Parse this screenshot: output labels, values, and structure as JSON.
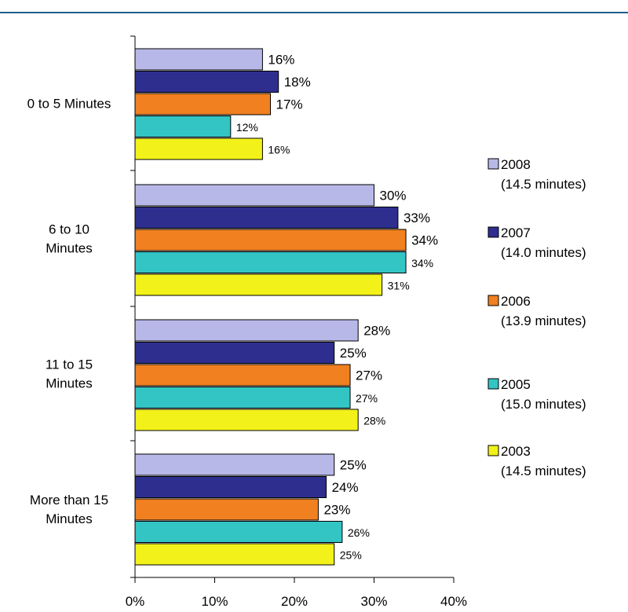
{
  "chart_data": {
    "type": "bar",
    "orientation": "horizontal",
    "categories": [
      "0 to 5 Minutes",
      "6 to 10 Minutes",
      "11 to 15 Minutes",
      "More than 15 Minutes"
    ],
    "category_lines": [
      [
        "0 to 5 Minutes"
      ],
      [
        "6 to 10",
        "Minutes"
      ],
      [
        "11 to 15",
        "Minutes"
      ],
      [
        "More than 15",
        "Minutes"
      ]
    ],
    "series": [
      {
        "name": "2008",
        "note": "(14.5 minutes)",
        "color": "#b8b8e8",
        "values": [
          16,
          30,
          28,
          25
        ],
        "labels": [
          "16%",
          "30%",
          "28%",
          "25%"
        ]
      },
      {
        "name": "2007",
        "note": "(14.0 minutes)",
        "color": "#2e2e8f",
        "values": [
          18,
          33,
          25,
          24
        ],
        "labels": [
          "18%",
          "33%",
          "25%",
          "24%"
        ]
      },
      {
        "name": "2006",
        "note": "(13.9 minutes)",
        "color": "#f08020",
        "values": [
          17,
          34,
          27,
          23
        ],
        "labels": [
          "17%",
          "34%",
          "27%",
          "23%"
        ]
      },
      {
        "name": "2005",
        "note": "(15.0 minutes)",
        "color": "#33c4c4",
        "values": [
          12,
          34,
          27,
          26
        ],
        "labels": [
          "12%",
          "34%",
          "27%",
          "26%"
        ]
      },
      {
        "name": "2003",
        "note": "(14.5 minutes)",
        "color": "#f2f21a",
        "values": [
          16,
          31,
          28,
          25
        ],
        "labels": [
          "16%",
          "31%",
          "28%",
          "25%"
        ]
      }
    ],
    "xlim": [
      0,
      40
    ],
    "xticks": [
      0,
      10,
      20,
      30,
      40
    ],
    "xtick_labels": [
      "0%",
      "10%",
      "20%",
      "30%",
      "40%"
    ],
    "legend": "right",
    "grid": false
  },
  "colors": {
    "top_rule": "#1f5f8b",
    "axis": "#000000"
  }
}
